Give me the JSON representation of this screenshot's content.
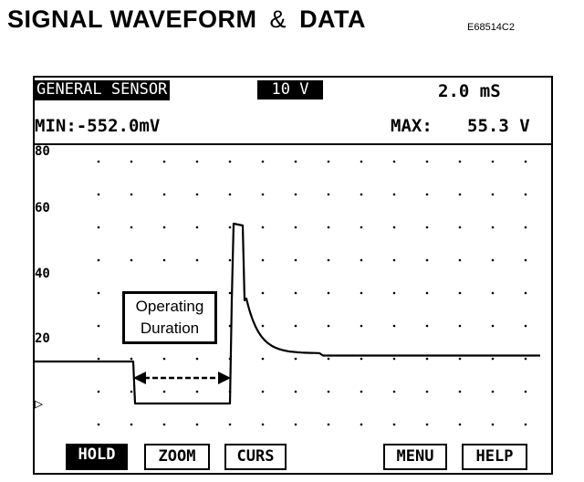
{
  "header": {
    "title_part1": "SIGNAL WAVEFORM",
    "title_amp": "&",
    "title_part2": "DATA",
    "figure_code": "E68514C2"
  },
  "scope": {
    "sensor_label": "GENERAL SENSOR",
    "volt_div": "10 V",
    "time_div": "2.0 mS",
    "min_reading": "MIN:-552.0mV",
    "max_label": "MAX:",
    "max_reading": "55.3 V",
    "y_ticks": [
      "80",
      "60",
      "40",
      "20"
    ],
    "trigger_marker": "▷",
    "callout_line1": "Operating",
    "callout_line2": "Duration",
    "waveform_color": "#000000"
  },
  "softkeys": {
    "hold": "HOLD",
    "zoom": "ZOOM",
    "curs": "CURS",
    "menu": "MENU",
    "help": "HELP"
  }
}
